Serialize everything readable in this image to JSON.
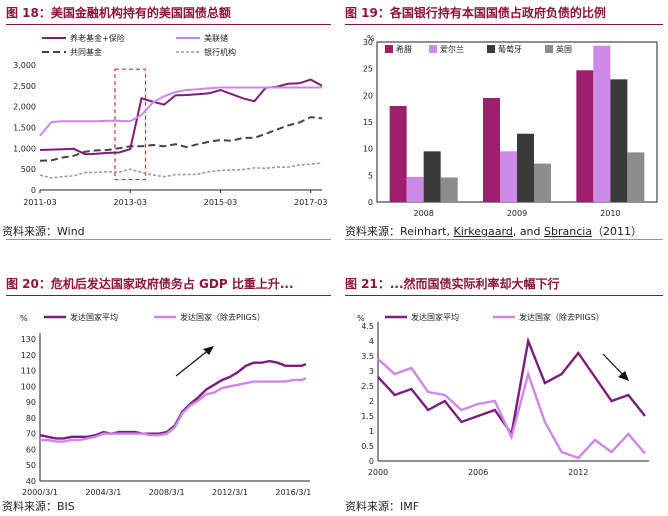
{
  "colors": {
    "dark_purple": "#7b1e7a",
    "light_purple": "#cc88e8",
    "dark_gray": "#444444",
    "light_gray": "#9a9a9a",
    "bar_purple": "#9e1f6c",
    "bar_light": "#cc8ae6",
    "bar_dark": "#3a3a3a",
    "bar_gray": "#8c8c8c",
    "title_red": "#8b1538",
    "highlight_red": "#c0392b"
  },
  "p18": {
    "title": "图 18：美国金融机构持有的美国国债总额",
    "source": "资料来源：Wind",
    "unit_line1": "十亿",
    "unit_line2": "美元"
  },
  "p19": {
    "title": "图 19：各国银行持有本国国债占政府负债的比例",
    "source_pre": "资料来源：Reinhart, ",
    "source_k": "Kirkegaard",
    "source_mid": ", and ",
    "source_s": "Sbrancia",
    "source_post": "（2011）",
    "unit": "%"
  },
  "p20": {
    "title": "图 20：危机后发达国家政府债务占 GDP 比重上升...",
    "source": "资料来源：BIS",
    "unit": "%"
  },
  "p21": {
    "title": "图 21：...然而国债实际利率却大幅下行",
    "source": "资料来源：IMF",
    "unit": "%"
  },
  "chart_data": [
    {
      "type": "line",
      "title": "美国金融机构持有的美国国债总额",
      "ylabel": "十亿美元",
      "ylim": [
        0,
        3000
      ],
      "yticks": [
        0,
        500,
        1000,
        1500,
        2000,
        2500,
        3000
      ],
      "xticks": [
        "2011-03",
        "2013-03",
        "2015-03",
        "2017-03"
      ],
      "x": [
        "2011-03",
        "2011-06",
        "2011-09",
        "2011-12",
        "2012-03",
        "2012-06",
        "2012-09",
        "2012-12",
        "2013-03",
        "2013-06",
        "2013-09",
        "2013-12",
        "2014-03",
        "2014-06",
        "2014-09",
        "2014-12",
        "2015-03",
        "2015-06",
        "2015-09",
        "2015-12",
        "2016-03",
        "2016-06",
        "2016-09",
        "2016-12",
        "2017-03",
        "2017-06"
      ],
      "series": [
        {
          "name": "养老基金+保险",
          "values": [
            960,
            970,
            980,
            990,
            860,
            870,
            890,
            900,
            980,
            2200,
            2120,
            2050,
            2270,
            2280,
            2300,
            2320,
            2400,
            2300,
            2200,
            2130,
            2450,
            2480,
            2550,
            2560,
            2650,
            2500
          ]
        },
        {
          "name": "美联储",
          "values": [
            1300,
            1630,
            1650,
            1650,
            1650,
            1650,
            1660,
            1660,
            1650,
            1800,
            2100,
            2250,
            2350,
            2400,
            2420,
            2440,
            2460,
            2460,
            2460,
            2460,
            2460,
            2460,
            2460,
            2460,
            2460,
            2460
          ]
        },
        {
          "name": "共同基金",
          "values": [
            700,
            710,
            780,
            820,
            920,
            950,
            960,
            1000,
            1050,
            1050,
            1080,
            1050,
            1100,
            1030,
            1100,
            1160,
            1200,
            1180,
            1250,
            1250,
            1350,
            1450,
            1550,
            1620,
            1750,
            1720
          ]
        },
        {
          "name": "银行机构",
          "values": [
            360,
            290,
            320,
            340,
            420,
            420,
            440,
            430,
            500,
            420,
            360,
            320,
            370,
            370,
            380,
            440,
            470,
            480,
            490,
            530,
            520,
            550,
            550,
            600,
            620,
            650
          ]
        }
      ],
      "annotation": "highlight box 2012-12 to 2013-06"
    },
    {
      "type": "bar",
      "title": "各国银行持有本国国债占政府负债的比例",
      "ylabel": "%",
      "ylim": [
        0,
        30
      ],
      "yticks": [
        0,
        5,
        10,
        15,
        20,
        25,
        30
      ],
      "categories": [
        "2008",
        "2009",
        "2010"
      ],
      "series": [
        {
          "name": "希腊",
          "values": [
            18,
            19.5,
            24.7
          ]
        },
        {
          "name": "爱尔兰",
          "values": [
            4.7,
            9.5,
            29.3
          ]
        },
        {
          "name": "葡萄牙",
          "values": [
            9.5,
            12.8,
            23
          ]
        },
        {
          "name": "英国",
          "values": [
            4.6,
            7.2,
            9.3
          ]
        }
      ],
      "legend": "top-left"
    },
    {
      "type": "line",
      "title": "危机后发达国家政府债务占 GDP 比重上升...",
      "ylabel": "%",
      "ylim": [
        40,
        130
      ],
      "yticks": [
        40,
        50,
        60,
        70,
        80,
        90,
        100,
        110,
        120,
        130
      ],
      "xticks": [
        "2000/3/1",
        "2004/3/1",
        "2008/3/1",
        "2012/3/1",
        "2016/3/1"
      ],
      "x": [
        2000.2,
        2000.7,
        2001.2,
        2001.7,
        2002.2,
        2002.7,
        2003.2,
        2003.7,
        2004.2,
        2004.7,
        2005.2,
        2005.7,
        2006.2,
        2006.7,
        2007.2,
        2007.7,
        2008.2,
        2008.7,
        2009.2,
        2009.7,
        2010.2,
        2010.7,
        2011.2,
        2011.7,
        2012.2,
        2012.7,
        2013.2,
        2013.7,
        2014.2,
        2014.7,
        2015.2,
        2015.7,
        2016.2,
        2016.7,
        2017.0
      ],
      "series": [
        {
          "name": "发达国家平均",
          "values": [
            69,
            68,
            67,
            67,
            68,
            68,
            68,
            69,
            71,
            70,
            71,
            71,
            71,
            70,
            70,
            70,
            71,
            75,
            84,
            89,
            93,
            98,
            101,
            104,
            106,
            109,
            113,
            115,
            115,
            116,
            115,
            113,
            113,
            113,
            114
          ]
        },
        {
          "name": "发达国家（除去PIIGS）",
          "values": [
            66,
            66,
            65,
            65,
            66,
            66,
            67,
            68,
            70,
            70,
            70,
            70,
            70,
            70,
            69,
            69,
            70,
            74,
            83,
            88,
            91,
            95,
            96,
            99,
            100,
            101,
            102,
            103,
            103,
            103,
            103,
            103,
            104,
            104,
            105
          ]
        }
      ],
      "annotation": "upward arrow"
    },
    {
      "type": "line",
      "title": "...然而国债实际利率却大幅下行",
      "ylabel": "%",
      "ylim": [
        0,
        4.5
      ],
      "yticks": [
        0,
        0.5,
        1,
        1.5,
        2,
        2.5,
        3,
        3.5,
        4,
        4.5
      ],
      "xticks": [
        "2000",
        "2006",
        "2012"
      ],
      "x": [
        2000,
        2001,
        2002,
        2003,
        2004,
        2005,
        2006,
        2007,
        2008,
        2009,
        2010,
        2011,
        2012,
        2013,
        2014,
        2015,
        2016
      ],
      "series": [
        {
          "name": "发达国家平均",
          "values": [
            2.8,
            2.2,
            2.4,
            1.7,
            2.0,
            1.3,
            1.5,
            1.7,
            0.9,
            4.0,
            2.6,
            2.9,
            3.6,
            2.8,
            2.0,
            2.2,
            1.5
          ]
        },
        {
          "name": "发达国家（除去PIIGS）",
          "values": [
            3.4,
            2.9,
            3.1,
            2.3,
            2.2,
            1.7,
            1.9,
            2.0,
            0.8,
            2.9,
            1.3,
            0.3,
            0.1,
            0.7,
            0.3,
            0.9,
            0.25
          ]
        }
      ],
      "annotation": "downward arrow"
    }
  ]
}
